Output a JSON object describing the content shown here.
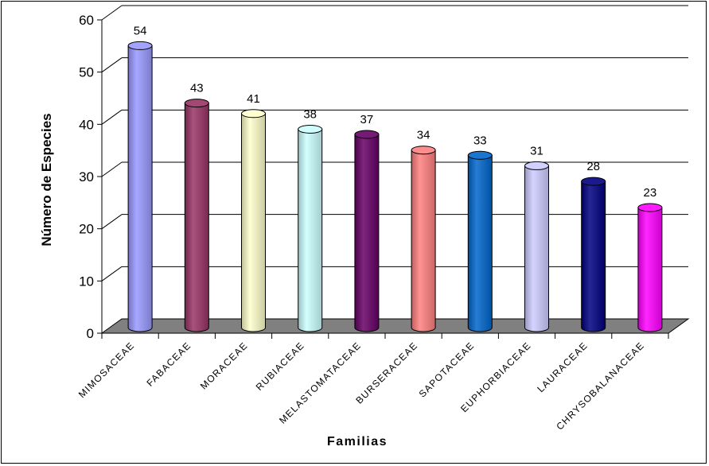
{
  "chart_data": {
    "type": "bar",
    "title": "",
    "xlabel": "Familias",
    "ylabel": "Número de Especies",
    "ylim": [
      0,
      60
    ],
    "yticks": [
      0,
      10,
      20,
      30,
      40,
      50,
      60
    ],
    "grid": true,
    "categories": [
      "MIMOSACEAE",
      "FABACEAE",
      "MORACEAE",
      "RUBIACEAE",
      "MELASTOMATACEAE",
      "BURSERACEAE",
      "SAPOTACEAE",
      "EUPHORBIACEAE",
      "LAURACEAE",
      "CHRYSOBALANACEAE"
    ],
    "values": [
      54,
      43,
      41,
      38,
      37,
      34,
      33,
      31,
      28,
      23
    ],
    "colors": [
      "#9999ff",
      "#993366",
      "#ffffcc",
      "#ccffff",
      "#660066",
      "#ff8080",
      "#0066cc",
      "#ccccff",
      "#000080",
      "#ff00ff"
    ],
    "floor_color": "#808080"
  }
}
